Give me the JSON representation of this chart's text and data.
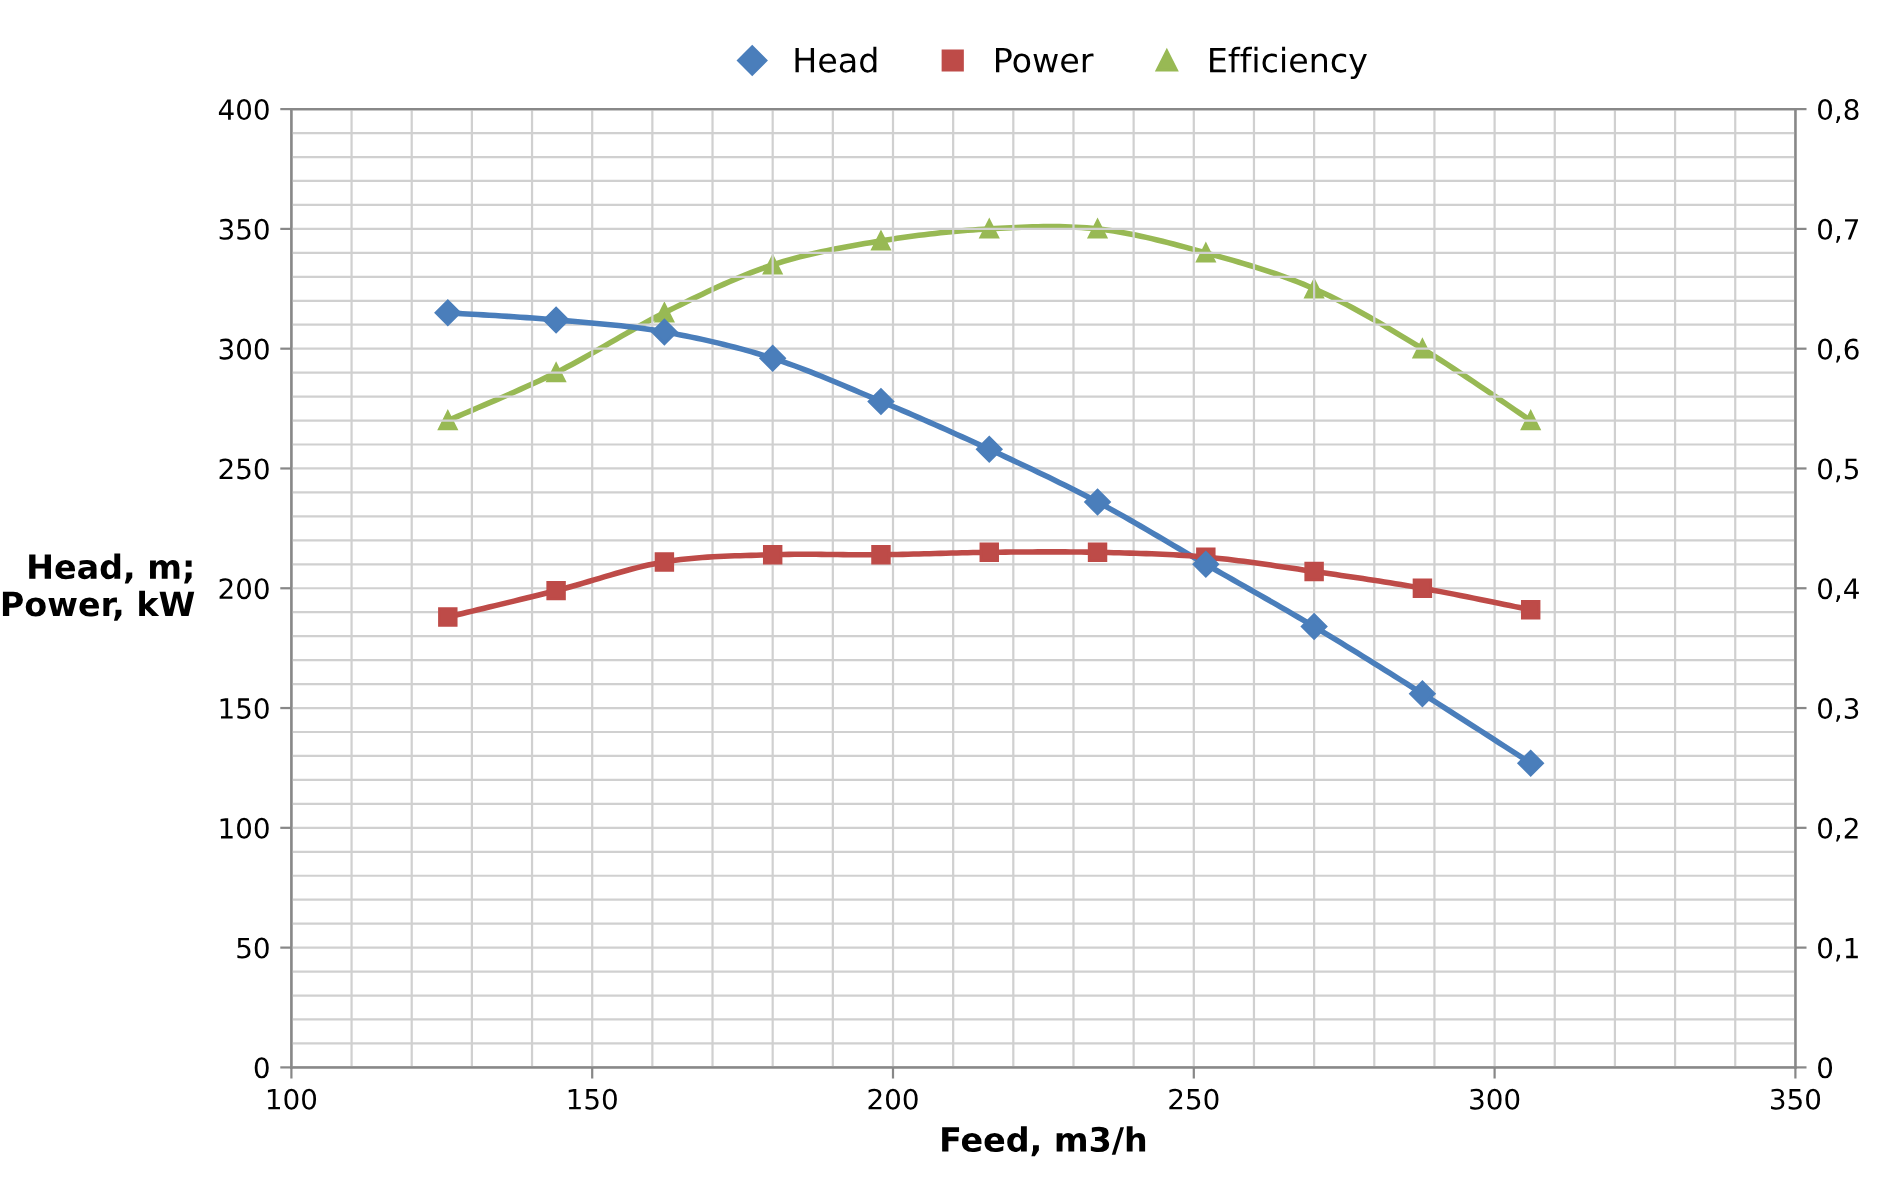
{
  "chart_data": {
    "type": "line",
    "xlabel": "Feed, m3/h",
    "ylabel": "Head, m;\nPower, kW",
    "x": [
      126,
      144,
      162,
      180,
      198,
      216,
      234,
      252,
      270,
      288,
      306
    ],
    "series": [
      {
        "name": "Head",
        "color": "#4a7ebb",
        "marker": "diamond",
        "values": [
          315,
          312,
          307,
          296,
          278,
          258,
          236,
          210,
          184,
          156,
          127
        ]
      },
      {
        "name": "Power",
        "color": "#be4b48",
        "marker": "square",
        "values": [
          188,
          199,
          211,
          214,
          214,
          215,
          215,
          213,
          207,
          200,
          191
        ]
      },
      {
        "name": "Efficiency",
        "color": "#98b954",
        "marker": "triangle",
        "axis": "y2",
        "values": [
          0.54,
          0.58,
          0.63,
          0.67,
          0.69,
          0.7,
          0.7,
          0.68,
          0.65,
          0.6,
          0.54
        ]
      }
    ],
    "xlim": [
      100,
      350
    ],
    "xticks": [
      100,
      150,
      200,
      250,
      300,
      350
    ],
    "ylim": [
      0,
      400
    ],
    "yticks": [
      0,
      50,
      100,
      150,
      200,
      250,
      300,
      350,
      400
    ],
    "y2lim": [
      0,
      0.8
    ],
    "y2ticks": [
      0,
      {
        "value": 0.1,
        "label": "0,1"
      },
      {
        "value": 0.2,
        "label": "0,2"
      },
      {
        "value": 0.3,
        "label": "0,3"
      },
      {
        "value": 0.4,
        "label": "0,4"
      },
      {
        "value": 0.5,
        "label": "0,5"
      },
      {
        "value": 0.6,
        "label": "0,6"
      },
      {
        "value": 0.7,
        "label": "0,7"
      },
      {
        "value": 0.8,
        "label": "0,8"
      }
    ],
    "grid": true,
    "legend": "top"
  }
}
